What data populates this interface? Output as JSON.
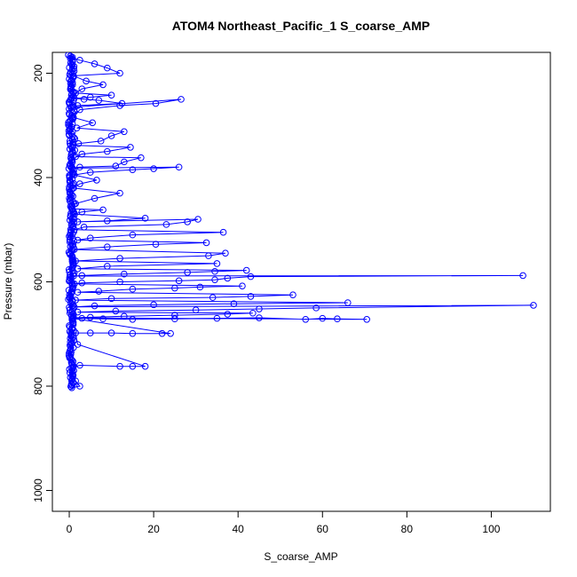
{
  "chart_data": {
    "type": "scatter",
    "title": "ATOM4 Northeast_Pacific_1 S_coarse_AMP",
    "xlabel": "S_coarse_AMP",
    "ylabel": "Pressure (mbar)",
    "xlim": [
      -4,
      114
    ],
    "ylim": [
      1040,
      160
    ],
    "y_reversed": true,
    "x_ticks": [
      0,
      20,
      40,
      60,
      80,
      100
    ],
    "y_ticks": [
      200,
      400,
      600,
      800,
      1000
    ],
    "grid": false,
    "legend": "none",
    "marker": "open-circle",
    "connected": true,
    "color": "#0000ff",
    "series": [
      {
        "x": [
          0.5,
          2.5,
          6.0,
          9.0,
          12.0,
          1.0,
          4.0,
          8.0,
          3.0,
          1.5,
          10.0,
          5.0,
          1.2,
          3.5,
          7.0,
          12.5,
          2.0,
          1.0,
          26.5,
          20.5,
          12.0,
          2.5,
          1.0,
          5.5,
          1.8,
          13.0,
          10.0,
          7.5,
          2.2,
          0.8,
          14.5,
          9.0,
          3.0,
          1.5,
          17.0,
          13.0,
          11.0,
          2.5,
          0.6,
          26.0,
          20.0,
          15.0,
          5.0,
          1.2,
          6.5,
          2.5,
          0.9,
          12.0,
          6.0,
          1.5,
          0.7,
          8.0,
          3.0,
          1.0,
          18.0,
          9.0,
          2.0,
          30.5,
          28.0,
          23.0,
          3.5,
          1.2,
          36.5,
          15.0,
          5.0,
          2.0,
          32.5,
          20.5,
          9.0,
          1.2,
          37.0,
          33.0,
          12.0,
          1.5,
          35.0,
          9.0,
          2.0,
          42.0,
          34.5,
          28.0,
          13.0,
          3.0,
          1.0,
          107.5,
          43.0,
          37.5,
          34.5,
          26.0,
          12.0,
          3.0,
          1.2,
          41.0,
          31.0,
          25.0,
          15.0,
          7.0,
          2.0,
          53.0,
          43.0,
          34.0,
          10.0,
          1.5,
          66.0,
          39.0,
          20.0,
          6.0,
          1.2,
          110.0,
          58.5,
          45.0,
          30.0,
          11.0,
          2.0,
          43.5,
          37.5,
          25.0,
          13.0,
          5.0,
          1.0,
          70.5,
          63.5,
          60.0,
          56.0,
          45.0,
          35.0,
          25.0,
          15.0,
          8.0,
          3.0,
          0.8,
          24.0,
          22.0,
          15.0,
          10.0,
          5.0,
          1.5,
          2.0,
          18.0,
          15.0,
          12.0,
          2.5,
          0.5,
          0.9,
          1.5,
          2.5,
          0.6
        ],
        "y": [
          170,
          175,
          182,
          190,
          200,
          205,
          215,
          222,
          230,
          238,
          242,
          246,
          248,
          250,
          252,
          258,
          262,
          265,
          250,
          258,
          262,
          270,
          285,
          295,
          305,
          312,
          320,
          330,
          335,
          338,
          342,
          350,
          355,
          360,
          362,
          370,
          378,
          380,
          382,
          380,
          383,
          385,
          390,
          395,
          405,
          412,
          420,
          430,
          440,
          450,
          460,
          462,
          466,
          470,
          478,
          483,
          485,
          480,
          485,
          490,
          495,
          500,
          505,
          510,
          516,
          520,
          525,
          528,
          533,
          538,
          545,
          550,
          555,
          560,
          565,
          570,
          575,
          578,
          580,
          582,
          585,
          588,
          589,
          588,
          590,
          593,
          596,
          598,
          600,
          602,
          604,
          608,
          610,
          612,
          614,
          618,
          620,
          625,
          628,
          630,
          632,
          635,
          640,
          642,
          644,
          646,
          648,
          645,
          650,
          652,
          654,
          656,
          658,
          660,
          662,
          664,
          666,
          668,
          669,
          672,
          671,
          670,
          672,
          669,
          670,
          671,
          672,
          671,
          670,
          670,
          699,
          699,
          699,
          698,
          698,
          698,
          720,
          762,
          762,
          762,
          760,
          765,
          780,
          790,
          800,
          803
        ]
      }
    ],
    "dense_profile": {
      "x_center": 0.3,
      "x_spread": 0.8,
      "y_from": 165,
      "y_to": 803
    }
  }
}
